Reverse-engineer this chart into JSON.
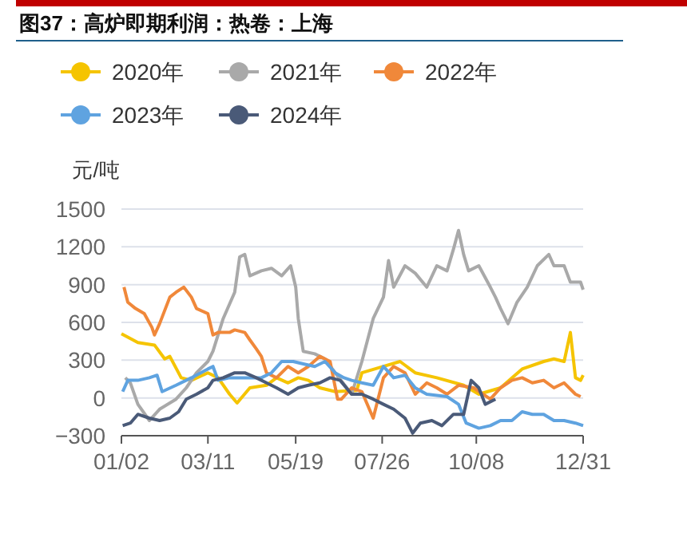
{
  "chart_data": {
    "type": "line",
    "title": "图37：高炉即期利润：热卷：上海",
    "ylabel": "元/吨",
    "legend": "top",
    "grid": "y",
    "xlim": [
      "--01-02",
      "--12-31"
    ],
    "xticks": [
      {
        "value": "--01-02",
        "label": "01/02"
      },
      {
        "value": "--03-11",
        "label": "03/11"
      },
      {
        "value": "--05-19",
        "label": "05/19"
      },
      {
        "value": "--07-26",
        "label": "07/26"
      },
      {
        "value": "--10-08",
        "label": "10/08"
      },
      {
        "value": "--12-31",
        "label": "12/31"
      }
    ],
    "ylim": [
      -300,
      1500
    ],
    "yticks": [
      -300,
      0,
      300,
      600,
      900,
      1200,
      1500
    ],
    "series": [
      {
        "name": "2020年",
        "color": "#f5c400",
        "x": [
          "--01-02",
          "--01-15",
          "--01-28",
          "--02-05",
          "--02-09",
          "--02-18",
          "--02-26",
          "--03-11",
          "--03-19",
          "--03-28",
          "--04-03",
          "--04-13",
          "--04-26",
          "--05-04",
          "--05-13",
          "--05-21",
          "--05-29",
          "--06-07",
          "--06-19",
          "--07-06",
          "--07-10",
          "--07-27",
          "--08-09",
          "--08-21",
          "--09-07",
          "--09-28",
          "--10-10",
          "--10-27",
          "--11-13",
          "--11-30",
          "--12-08",
          "--12-16",
          "--12-21",
          "--12-25",
          "--12-29",
          "--12-31"
        ],
        "values": [
          510,
          440,
          420,
          310,
          330,
          160,
          140,
          200,
          160,
          30,
          -40,
          80,
          100,
          160,
          120,
          160,
          140,
          80,
          50,
          60,
          200,
          250,
          290,
          200,
          160,
          100,
          30,
          80,
          230,
          290,
          310,
          290,
          520,
          160,
          140,
          180
        ]
      },
      {
        "name": "2021年",
        "color": "#a9a9a9",
        "x": [
          "--01-05",
          "--01-09",
          "--01-15",
          "--01-24",
          "--02-01",
          "--02-14",
          "--02-22",
          "--03-02",
          "--03-11",
          "--03-15",
          "--03-23",
          "--04-01",
          "--04-05",
          "--04-09",
          "--04-13",
          "--04-22",
          "--04-30",
          "--05-08",
          "--05-15",
          "--05-19",
          "--05-21",
          "--05-25",
          "--06-03",
          "--06-11",
          "--06-19",
          "--07-02",
          "--07-10",
          "--07-19",
          "--07-27",
          "--07-31",
          "--08-04",
          "--08-13",
          "--08-21",
          "--08-30",
          "--09-07",
          "--09-15",
          "--09-20",
          "--09-24",
          "--09-28",
          "--10-02",
          "--10-10",
          "--10-19",
          "--10-23",
          "--10-27",
          "--11-02",
          "--11-09",
          "--11-17",
          "--11-25",
          "--12-04",
          "--12-08",
          "--12-16",
          "--12-21",
          "--12-29",
          "--12-31"
        ],
        "values": [
          160,
          120,
          -50,
          -180,
          -90,
          -10,
          80,
          200,
          290,
          370,
          630,
          840,
          1120,
          1140,
          970,
          1010,
          1030,
          970,
          1050,
          880,
          630,
          370,
          350,
          310,
          200,
          30,
          290,
          630,
          800,
          1090,
          880,
          1050,
          990,
          880,
          1050,
          1010,
          1180,
          1330,
          1140,
          1010,
          1050,
          880,
          800,
          710,
          590,
          760,
          880,
          1050,
          1140,
          1050,
          1050,
          920,
          920,
          860
        ]
      },
      {
        "name": "2022年",
        "color": "#f0883a",
        "x": [
          "--01-04",
          "--01-07",
          "--01-13",
          "--01-20",
          "--01-26",
          "--01-28",
          "--02-01",
          "--02-09",
          "--02-14",
          "--02-20",
          "--02-26",
          "--03-02",
          "--03-11",
          "--03-15",
          "--03-19",
          "--03-28",
          "--04-01",
          "--04-09",
          "--04-13",
          "--04-18",
          "--04-22",
          "--04-26",
          "--05-04",
          "--05-13",
          "--05-21",
          "--05-29",
          "--06-07",
          "--06-15",
          "--06-21",
          "--06-24",
          "--07-02",
          "--07-10",
          "--07-19",
          "--07-27",
          "--08-04",
          "--08-13",
          "--08-21",
          "--08-30",
          "--09-07",
          "--09-15",
          "--09-24",
          "--10-06",
          "--10-19",
          "--10-27",
          "--11-05",
          "--11-13",
          "--11-21",
          "--11-30",
          "--12-08",
          "--12-16",
          "--12-25",
          "--12-29"
        ],
        "values": [
          880,
          760,
          710,
          670,
          560,
          500,
          590,
          800,
          840,
          880,
          800,
          710,
          670,
          500,
          520,
          520,
          540,
          520,
          460,
          390,
          330,
          200,
          160,
          250,
          200,
          250,
          330,
          290,
          -10,
          -10,
          80,
          50,
          -160,
          160,
          250,
          200,
          30,
          120,
          80,
          30,
          100,
          80,
          -10,
          80,
          140,
          160,
          120,
          140,
          80,
          120,
          30,
          10
        ]
      },
      {
        "name": "2023年",
        "color": "#5fa3e0",
        "x": [
          "--01-03",
          "--01-07",
          "--01-15",
          "--01-24",
          "--01-30",
          "--02-03",
          "--02-14",
          "--02-26",
          "--03-11",
          "--03-15",
          "--03-19",
          "--03-28",
          "--04-09",
          "--04-22",
          "--04-30",
          "--05-08",
          "--05-17",
          "--05-25",
          "--06-03",
          "--06-11",
          "--06-19",
          "--06-26",
          "--07-02",
          "--07-10",
          "--07-19",
          "--07-27",
          "--08-04",
          "--08-13",
          "--08-21",
          "--08-30",
          "--09-15",
          "--09-24",
          "--09-30",
          "--10-10",
          "--10-19",
          "--10-27",
          "--11-05",
          "--11-13",
          "--11-21",
          "--11-30",
          "--12-08",
          "--12-16",
          "--12-25",
          "--12-31"
        ],
        "values": [
          50,
          140,
          140,
          160,
          180,
          50,
          100,
          160,
          230,
          250,
          140,
          160,
          160,
          160,
          200,
          290,
          290,
          270,
          250,
          290,
          200,
          160,
          140,
          120,
          100,
          250,
          160,
          180,
          80,
          30,
          10,
          -50,
          -200,
          -240,
          -220,
          -180,
          -180,
          -110,
          -130,
          -130,
          -180,
          -180,
          -200,
          -220
        ]
      },
      {
        "name": "2024年",
        "color": "#4a5a78",
        "x": [
          "--01-03",
          "--01-09",
          "--01-15",
          "--01-24",
          "--02-01",
          "--02-09",
          "--02-16",
          "--02-22",
          "--03-02",
          "--03-11",
          "--03-15",
          "--03-23",
          "--04-01",
          "--04-09",
          "--04-18",
          "--04-26",
          "--05-04",
          "--05-13",
          "--05-21",
          "--05-29",
          "--06-07",
          "--06-15",
          "--06-23",
          "--07-02",
          "--07-10",
          "--07-19",
          "--07-27",
          "--08-04",
          "--08-13",
          "--08-19",
          "--08-25",
          "--09-03",
          "--09-11",
          "--09-20",
          "--09-28",
          "--10-04",
          "--10-10",
          "--10-15",
          "--10-23"
        ],
        "values": [
          -220,
          -200,
          -130,
          -160,
          -180,
          -160,
          -110,
          -10,
          30,
          80,
          140,
          160,
          200,
          200,
          160,
          120,
          80,
          30,
          80,
          100,
          120,
          160,
          140,
          30,
          30,
          -10,
          -50,
          -90,
          -160,
          -280,
          -200,
          -180,
          -220,
          -130,
          -130,
          140,
          80,
          -50,
          -10
        ]
      }
    ]
  }
}
